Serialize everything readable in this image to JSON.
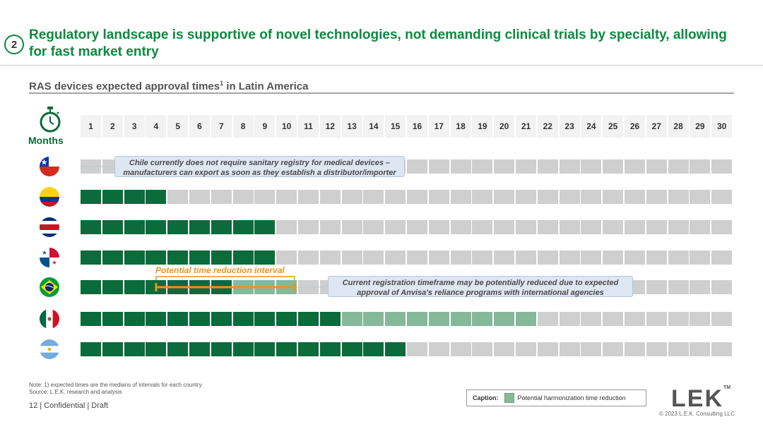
{
  "header": {
    "badge": "2",
    "title": "Regulatory landscape is supportive of novel technologies, not demanding clinical trials by specialty, allowing for fast market entry"
  },
  "chart_title": "RAS devices expected approval times",
  "chart_title_sup": "1",
  "chart_title_suffix": " in Latin America",
  "months_label": "Months",
  "colors": {
    "green": "#0b6b3a",
    "light_green": "#86b89a",
    "grey": "#cfcfcf",
    "orange": "#e8951c",
    "title_green": "#0c8a3f"
  },
  "chart_data": {
    "type": "bar",
    "x": [
      1,
      2,
      3,
      4,
      5,
      6,
      7,
      8,
      9,
      10,
      11,
      12,
      13,
      14,
      15,
      16,
      17,
      18,
      19,
      20,
      21,
      22,
      23,
      24,
      25,
      26,
      27,
      28,
      29,
      30
    ],
    "series": [
      {
        "name": "",
        "icon": "chile-flag-icon",
        "approval_months": 0,
        "harmonization_months": 0
      },
      {
        "name": "",
        "icon": "colombia-flag-icon",
        "approval_months": 4,
        "harmonization_months": 0
      },
      {
        "name": "",
        "icon": "costa-rica-flag-icon",
        "approval_months": 9,
        "harmonization_months": 0
      },
      {
        "name": "",
        "icon": "panama-flag-icon",
        "approval_months": 9,
        "harmonization_months": 0
      },
      {
        "name": "",
        "icon": "brazil-flag-icon",
        "approval_months": 7,
        "harmonization_months": 3
      },
      {
        "name": "",
        "icon": "mexico-flag-icon",
        "approval_months": 12,
        "harmonization_months": 9
      },
      {
        "name": "",
        "icon": "argentina-flag-icon",
        "approval_months": 15,
        "harmonization_months": 0
      }
    ],
    "interval": {
      "label": "Potential time reduction interval",
      "start": 4,
      "end": 10
    }
  },
  "callouts": {
    "chile": "Chile currently does not require sanitary registry for medical devices – manufacturers can export as soon as they establish a distributor/importer",
    "brazil": "Current registration timeframe may be potentially reduced due to expected approval of Anvisa's reliance programs with international agencies"
  },
  "note": "Note: 1) expected times are the medians of intervals for each country",
  "source": "Source: L.E.K. research and analysis",
  "footer": "12  |  Confidential | Draft",
  "caption": {
    "label": "Caption:",
    "text": "Potential harmonization time reduction"
  },
  "logo": "LEK",
  "logo_tm": "TM",
  "copyright": "© 2023 L.E.K. Consulting LLC"
}
